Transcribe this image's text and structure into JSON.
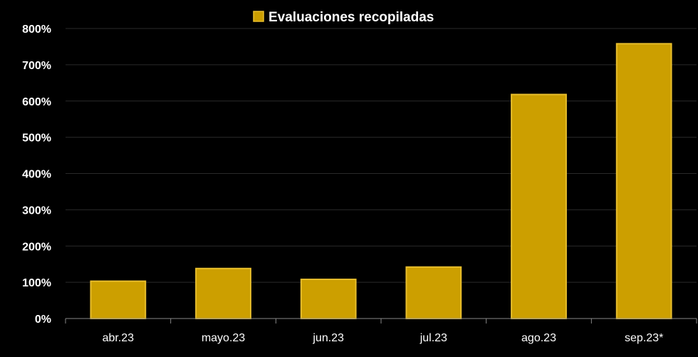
{
  "chart_data": {
    "type": "bar",
    "categories": [
      "abr.23",
      "mayo.23",
      "jun.23",
      "jul.23",
      "ago.23",
      "sep.23*"
    ],
    "series": [
      {
        "name": "Evaluaciones recopiladas",
        "values": [
          103,
          138,
          108,
          142,
          618,
          758
        ]
      }
    ],
    "y_ticks": [
      "0%",
      "100%",
      "200%",
      "300%",
      "400%",
      "500%",
      "600%",
      "700%",
      "800%"
    ],
    "ylim": [
      0,
      800
    ],
    "y_unit": "%",
    "grid": true,
    "legend_position": "top-center",
    "colors": {
      "background": "#000000",
      "bar_fill": "#CC9F00",
      "bar_edge": "#E8BE2C",
      "grid": "#2a2a2a",
      "axis": "#888888",
      "text": "#ffffff"
    }
  }
}
